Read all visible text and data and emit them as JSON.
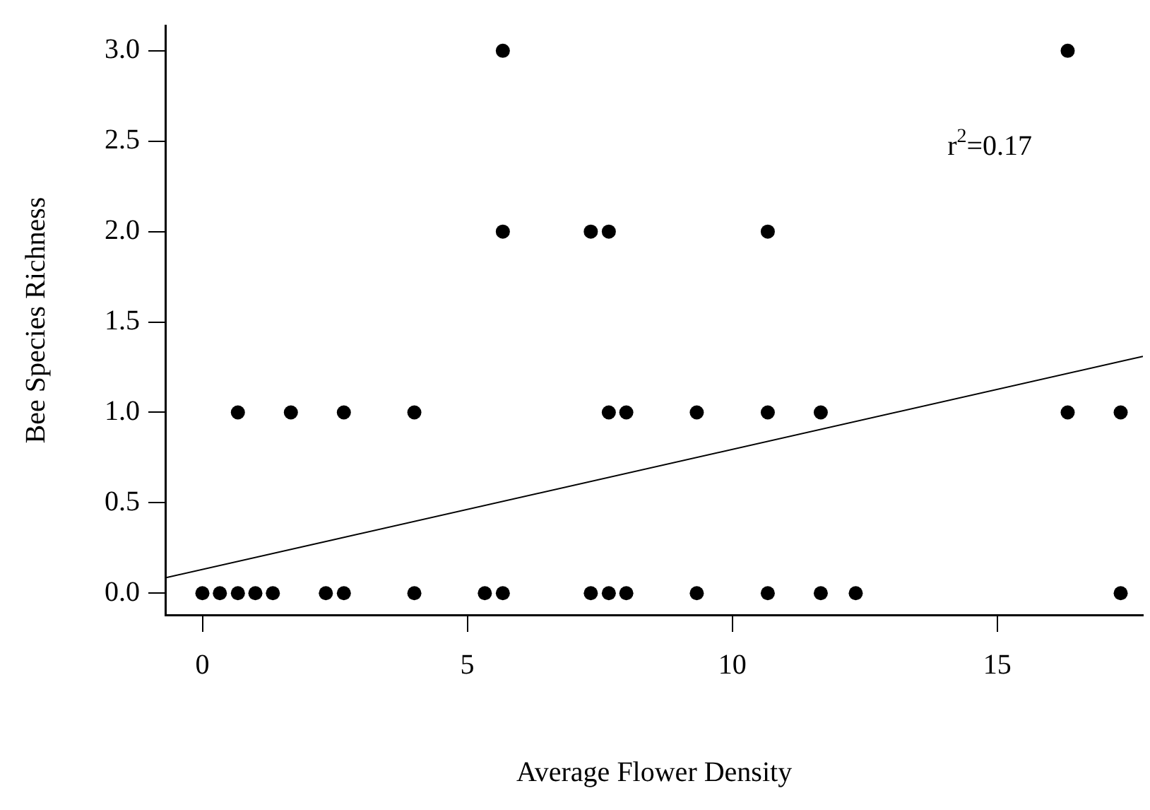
{
  "chart_data": {
    "type": "scatter",
    "xlabel": "Average Flower Density",
    "ylabel": "Bee Species Richness",
    "annotations": [
      "r$^{2}$=0.17"
    ],
    "xlim": [
      -0.7,
      17.75
    ],
    "ylim": [
      -0.12,
      3.14
    ],
    "xticks": [
      0,
      5,
      10,
      15
    ],
    "yticks": [
      {
        "value": 0,
        "label": "0.0"
      },
      0.5,
      {
        "value": 1,
        "label": "1.0"
      },
      1.5,
      {
        "value": 2,
        "label": "2.0"
      },
      2.5,
      {
        "value": 3,
        "label": "3.0"
      }
    ],
    "grid": false,
    "legend": false,
    "marker": "circle",
    "series": [
      {
        "color": "#000000",
        "x": [
          0,
          0.33,
          0.67,
          1,
          1.33,
          2.33,
          2.67,
          4,
          5.33,
          5.67,
          7.33,
          7.67,
          8,
          9.33,
          10.67,
          11.67,
          12.33,
          17.33,
          0.67,
          1.67,
          2.67,
          4,
          7.67,
          8,
          9.33,
          10.67,
          11.67,
          16.33,
          17.33,
          5.67,
          7.33,
          7.67,
          10.67,
          5.67,
          16.33
        ],
        "values": [
          0,
          0,
          0,
          0,
          0,
          0,
          0,
          0,
          0,
          0,
          0,
          0,
          0,
          0,
          0,
          0,
          0,
          0,
          1,
          1,
          1,
          1,
          1,
          1,
          1,
          1,
          1,
          1,
          1,
          2,
          2,
          2,
          2,
          3,
          3
        ]
      },
      {
        "type": "line",
        "color": "#000000",
        "marker": "none",
        "x": [
          -0.7,
          17.75
        ],
        "values": [
          0.085,
          1.31
        ]
      }
    ]
  }
}
